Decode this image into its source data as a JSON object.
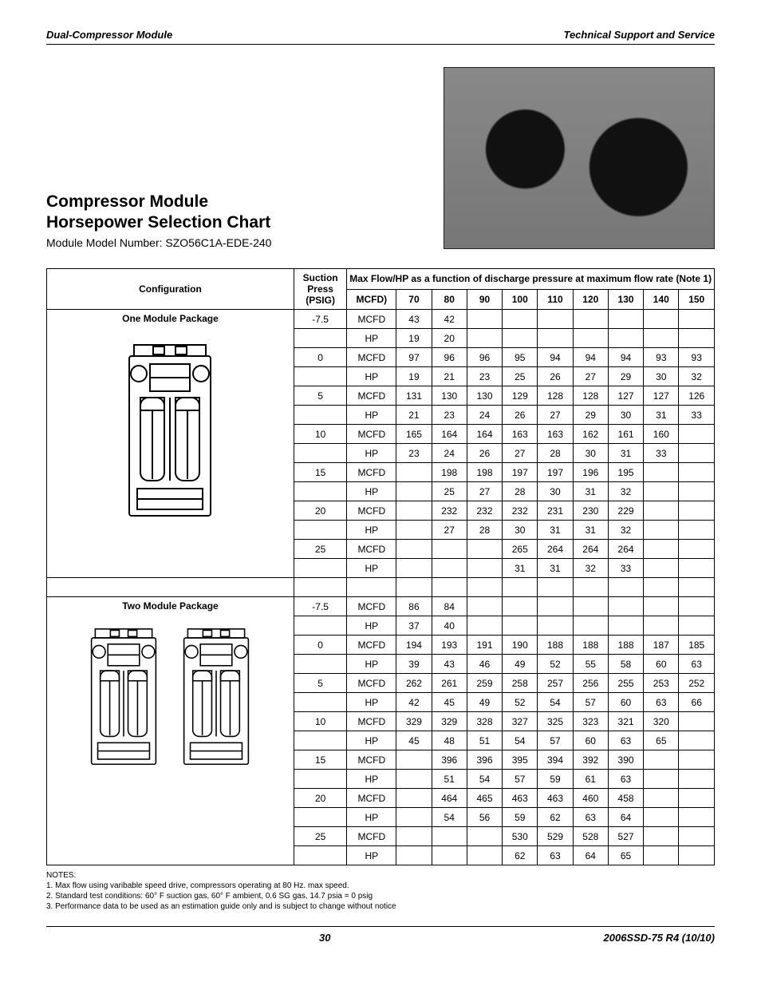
{
  "header": {
    "left": "Dual-Compressor Module",
    "right": "Technical Support and Service"
  },
  "title": {
    "line1": "Compressor Module",
    "line2": "Horsepower Selection Chart",
    "sub": "Module Model Number: SZO56C1A-EDE-240"
  },
  "table": {
    "head": {
      "configuration": "Configuration",
      "suction": "Suction Press (PSIG)",
      "maxflow": "Max Flow/HP as a function of discharge pressure at maximum flow rate  (Note 1)",
      "unit_col": "MCFD)",
      "discharge_cols": [
        "70",
        "80",
        "90",
        "100",
        "110",
        "120",
        "130",
        "140",
        "150"
      ]
    },
    "sections": [
      {
        "config": "One Module Package",
        "rows": [
          {
            "sp": "-7.5",
            "u": "MCFD",
            "v": [
              "43",
              "42",
              "",
              "",
              "",
              "",
              "",
              "",
              ""
            ]
          },
          {
            "sp": "",
            "u": "HP",
            "v": [
              "19",
              "20",
              "",
              "",
              "",
              "",
              "",
              "",
              ""
            ]
          },
          {
            "sp": "0",
            "u": "MCFD",
            "v": [
              "97",
              "96",
              "96",
              "95",
              "94",
              "94",
              "94",
              "93",
              "93"
            ]
          },
          {
            "sp": "",
            "u": "HP",
            "v": [
              "19",
              "21",
              "23",
              "25",
              "26",
              "27",
              "29",
              "30",
              "32"
            ]
          },
          {
            "sp": "5",
            "u": "MCFD",
            "v": [
              "131",
              "130",
              "130",
              "129",
              "128",
              "128",
              "127",
              "127",
              "126"
            ]
          },
          {
            "sp": "",
            "u": "HP",
            "v": [
              "21",
              "23",
              "24",
              "26",
              "27",
              "29",
              "30",
              "31",
              "33"
            ]
          },
          {
            "sp": "10",
            "u": "MCFD",
            "v": [
              "165",
              "164",
              "164",
              "163",
              "163",
              "162",
              "161",
              "160",
              ""
            ]
          },
          {
            "sp": "",
            "u": "HP",
            "v": [
              "23",
              "24",
              "26",
              "27",
              "28",
              "30",
              "31",
              "33",
              ""
            ]
          },
          {
            "sp": "15",
            "u": "MCFD",
            "v": [
              "",
              "198",
              "198",
              "197",
              "197",
              "196",
              "195",
              "",
              ""
            ]
          },
          {
            "sp": "",
            "u": "HP",
            "v": [
              "",
              "25",
              "27",
              "28",
              "30",
              "31",
              "32",
              "",
              ""
            ]
          },
          {
            "sp": "20",
            "u": "MCFD",
            "v": [
              "",
              "232",
              "232",
              "232",
              "231",
              "230",
              "229",
              "",
              ""
            ]
          },
          {
            "sp": "",
            "u": "HP",
            "v": [
              "",
              "27",
              "28",
              "30",
              "31",
              "31",
              "32",
              "",
              ""
            ]
          },
          {
            "sp": "25",
            "u": "MCFD",
            "v": [
              "",
              "",
              "",
              "265",
              "264",
              "264",
              "264",
              "",
              ""
            ]
          },
          {
            "sp": "",
            "u": "HP",
            "v": [
              "",
              "",
              "",
              "31",
              "31",
              "32",
              "33",
              "",
              ""
            ]
          }
        ]
      },
      {
        "config": "Two Module Package",
        "rows": [
          {
            "sp": "-7.5",
            "u": "MCFD",
            "v": [
              "86",
              "84",
              "",
              "",
              "",
              "",
              "",
              "",
              ""
            ]
          },
          {
            "sp": "",
            "u": "HP",
            "v": [
              "37",
              "40",
              "",
              "",
              "",
              "",
              "",
              "",
              ""
            ]
          },
          {
            "sp": "0",
            "u": "MCFD",
            "v": [
              "194",
              "193",
              "191",
              "190",
              "188",
              "188",
              "188",
              "187",
              "185"
            ]
          },
          {
            "sp": "",
            "u": "HP",
            "v": [
              "39",
              "43",
              "46",
              "49",
              "52",
              "55",
              "58",
              "60",
              "63"
            ]
          },
          {
            "sp": "5",
            "u": "MCFD",
            "v": [
              "262",
              "261",
              "259",
              "258",
              "257",
              "256",
              "255",
              "253",
              "252"
            ]
          },
          {
            "sp": "",
            "u": "HP",
            "v": [
              "42",
              "45",
              "49",
              "52",
              "54",
              "57",
              "60",
              "63",
              "66"
            ]
          },
          {
            "sp": "10",
            "u": "MCFD",
            "v": [
              "329",
              "329",
              "328",
              "327",
              "325",
              "323",
              "321",
              "320",
              ""
            ]
          },
          {
            "sp": "",
            "u": "HP",
            "v": [
              "45",
              "48",
              "51",
              "54",
              "57",
              "60",
              "63",
              "65",
              ""
            ]
          },
          {
            "sp": "15",
            "u": "MCFD",
            "v": [
              "",
              "396",
              "396",
              "395",
              "394",
              "392",
              "390",
              "",
              ""
            ]
          },
          {
            "sp": "",
            "u": "HP",
            "v": [
              "",
              "51",
              "54",
              "57",
              "59",
              "61",
              "63",
              "",
              ""
            ]
          },
          {
            "sp": "20",
            "u": "MCFD",
            "v": [
              "",
              "464",
              "465",
              "463",
              "463",
              "460",
              "458",
              "",
              ""
            ]
          },
          {
            "sp": "",
            "u": "HP",
            "v": [
              "",
              "54",
              "56",
              "59",
              "62",
              "63",
              "64",
              "",
              ""
            ]
          },
          {
            "sp": "25",
            "u": "MCFD",
            "v": [
              "",
              "",
              "",
              "530",
              "529",
              "528",
              "527",
              "",
              ""
            ]
          },
          {
            "sp": "",
            "u": "HP",
            "v": [
              "",
              "",
              "",
              "62",
              "63",
              "64",
              "65",
              "",
              ""
            ]
          }
        ]
      }
    ]
  },
  "notes": {
    "label": "NOTES:",
    "items": [
      "1.  Max flow using varibable speed drive, compressors operating at 80 Hz. max speed.",
      "2.  Standard test conditions:  60° F suction gas, 60° F ambient, 0.6 SG gas, 14.7 psia = 0 psig",
      "3.  Performance data to be used as an estimation guide only and is subject to change without notice"
    ]
  },
  "footer": {
    "page": "30",
    "doc": "2006SSD-75 R4 (10/10)"
  }
}
